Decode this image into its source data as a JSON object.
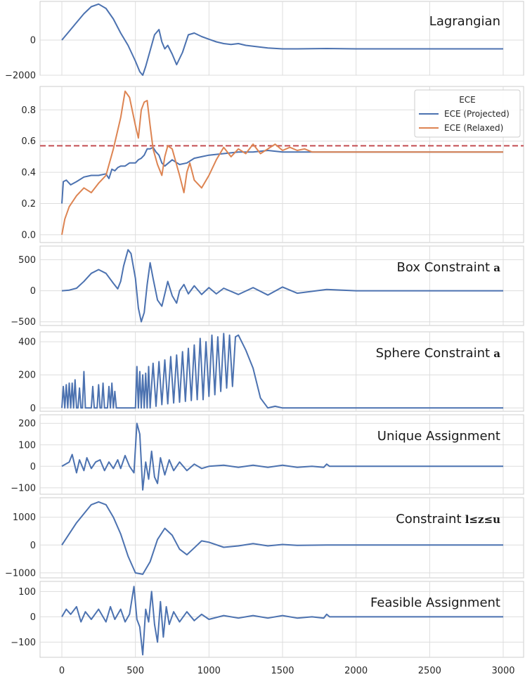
{
  "chart_data": [
    {
      "type": "line",
      "title": "Lagrangian",
      "x_range": [
        0,
        3000
      ],
      "ylim": [
        -2000,
        2200
      ],
      "y_ticks": [
        {
          "v": 0,
          "label": "0"
        },
        {
          "v": -2000,
          "label": "−2000"
        }
      ],
      "series": [
        {
          "color": "#4c72b0",
          "x": [
            0,
            50,
            100,
            150,
            200,
            250,
            300,
            350,
            400,
            450,
            500,
            530,
            550,
            570,
            600,
            630,
            660,
            680,
            700,
            720,
            750,
            780,
            820,
            860,
            900,
            950,
            1000,
            1050,
            1100,
            1150,
            1200,
            1250,
            1300,
            1400,
            1500,
            1600,
            1800,
            2000,
            2500,
            3000
          ],
          "y": [
            0,
            500,
            1000,
            1500,
            1900,
            2050,
            1800,
            1200,
            400,
            -300,
            -1200,
            -1800,
            -2000,
            -1500,
            -600,
            300,
            600,
            -100,
            -500,
            -300,
            -800,
            -1400,
            -700,
            300,
            400,
            200,
            50,
            -100,
            -200,
            -250,
            -200,
            -300,
            -350,
            -450,
            -500,
            -500,
            -480,
            -500,
            -500,
            -500
          ]
        }
      ]
    },
    {
      "type": "line",
      "title": "",
      "x_range": [
        0,
        3000
      ],
      "ylim": [
        -0.05,
        0.95
      ],
      "y_ticks": [
        {
          "v": 0.8,
          "label": "0.8"
        },
        {
          "v": 0.6,
          "label": "0.6"
        },
        {
          "v": 0.4,
          "label": "0.4"
        },
        {
          "v": 0.2,
          "label": "0.2"
        },
        {
          "v": 0.0,
          "label": "0.0"
        }
      ],
      "legend": {
        "title": "ECE",
        "placement": "top-right"
      },
      "hline": {
        "y": 0.57,
        "color": "#c44e52",
        "style": "dashed"
      },
      "series": [
        {
          "name": "ECE (Projected)",
          "color": "#4c72b0",
          "x": [
            0,
            10,
            30,
            60,
            100,
            150,
            200,
            250,
            300,
            320,
            340,
            360,
            380,
            400,
            430,
            460,
            500,
            520,
            540,
            560,
            580,
            600,
            620,
            640,
            660,
            680,
            700,
            750,
            800,
            850,
            900,
            950,
            1000,
            1100,
            1200,
            1300,
            1400,
            1500,
            1600,
            1800,
            2000,
            2500,
            3000
          ],
          "y": [
            0.2,
            0.34,
            0.35,
            0.32,
            0.34,
            0.37,
            0.38,
            0.38,
            0.39,
            0.36,
            0.42,
            0.41,
            0.43,
            0.44,
            0.44,
            0.46,
            0.46,
            0.48,
            0.49,
            0.51,
            0.55,
            0.55,
            0.56,
            0.53,
            0.51,
            0.46,
            0.44,
            0.48,
            0.45,
            0.46,
            0.49,
            0.5,
            0.51,
            0.52,
            0.53,
            0.53,
            0.54,
            0.53,
            0.53,
            0.53,
            0.53,
            0.53,
            0.53
          ]
        },
        {
          "name": "ECE (Relaxed)",
          "color": "#dd8452",
          "x": [
            0,
            20,
            50,
            100,
            150,
            200,
            250,
            300,
            350,
            400,
            430,
            460,
            500,
            520,
            540,
            560,
            580,
            600,
            620,
            650,
            680,
            700,
            720,
            750,
            800,
            830,
            850,
            870,
            900,
            950,
            1000,
            1050,
            1100,
            1150,
            1200,
            1250,
            1300,
            1350,
            1400,
            1450,
            1500,
            1550,
            1600,
            1650,
            1700,
            1800,
            2000,
            2500,
            3000
          ],
          "y": [
            0,
            0.1,
            0.18,
            0.25,
            0.3,
            0.27,
            0.33,
            0.38,
            0.55,
            0.75,
            0.92,
            0.88,
            0.7,
            0.62,
            0.8,
            0.85,
            0.86,
            0.7,
            0.55,
            0.45,
            0.38,
            0.5,
            0.57,
            0.55,
            0.38,
            0.27,
            0.4,
            0.46,
            0.35,
            0.3,
            0.38,
            0.48,
            0.56,
            0.5,
            0.55,
            0.52,
            0.58,
            0.52,
            0.55,
            0.58,
            0.54,
            0.56,
            0.54,
            0.55,
            0.53,
            0.53,
            0.53,
            0.53,
            0.53
          ]
        }
      ]
    },
    {
      "type": "line",
      "title": "Box Constraint",
      "title_symbol": "a",
      "x_range": [
        0,
        3000
      ],
      "ylim": [
        -560,
        720
      ],
      "y_ticks": [
        {
          "v": 500,
          "label": "500"
        },
        {
          "v": 0,
          "label": "0"
        },
        {
          "v": -500,
          "label": "−500"
        }
      ],
      "series": [
        {
          "color": "#4c72b0",
          "x": [
            0,
            50,
            100,
            150,
            200,
            250,
            300,
            350,
            380,
            400,
            420,
            450,
            470,
            500,
            520,
            540,
            560,
            580,
            600,
            620,
            650,
            680,
            700,
            720,
            750,
            780,
            800,
            830,
            860,
            900,
            950,
            1000,
            1050,
            1100,
            1200,
            1300,
            1400,
            1500,
            1600,
            1800,
            2000,
            2500,
            3000
          ],
          "y": [
            0,
            10,
            40,
            150,
            280,
            340,
            280,
            120,
            30,
            150,
            400,
            660,
            600,
            200,
            -280,
            -500,
            -350,
            100,
            450,
            200,
            -150,
            -250,
            -50,
            150,
            -80,
            -200,
            0,
            100,
            -50,
            80,
            -60,
            50,
            -50,
            40,
            -60,
            50,
            -70,
            60,
            -40,
            20,
            0,
            0,
            0
          ]
        }
      ]
    },
    {
      "type": "line",
      "title": "Sphere Constraint",
      "title_symbol": "a",
      "x_range": [
        0,
        3000
      ],
      "ylim": [
        -20,
        460
      ],
      "y_ticks": [
        {
          "v": 400,
          "label": "400"
        },
        {
          "v": 200,
          "label": "200"
        },
        {
          "v": 0,
          "label": "0"
        }
      ],
      "series": [
        {
          "color": "#4c72b0",
          "x": [
            0,
            10,
            20,
            30,
            40,
            50,
            60,
            70,
            80,
            90,
            100,
            110,
            120,
            130,
            140,
            150,
            160,
            170,
            180,
            190,
            200,
            210,
            220,
            230,
            240,
            250,
            260,
            270,
            280,
            290,
            300,
            310,
            320,
            330,
            340,
            350,
            360,
            370,
            380,
            500,
            510,
            520,
            530,
            540,
            550,
            560,
            570,
            580,
            590,
            600,
            620,
            640,
            660,
            680,
            700,
            720,
            740,
            760,
            780,
            800,
            820,
            840,
            860,
            880,
            900,
            920,
            940,
            960,
            980,
            1000,
            1020,
            1040,
            1060,
            1080,
            1100,
            1120,
            1140,
            1160,
            1180,
            1200,
            1250,
            1300,
            1350,
            1400,
            1450,
            1500,
            1600,
            1800,
            2000,
            2500,
            3000
          ],
          "y": [
            0,
            130,
            0,
            140,
            0,
            150,
            0,
            150,
            0,
            170,
            0,
            0,
            120,
            0,
            0,
            220,
            0,
            0,
            0,
            0,
            0,
            130,
            0,
            0,
            0,
            140,
            0,
            0,
            150,
            0,
            0,
            0,
            130,
            0,
            150,
            0,
            100,
            0,
            0,
            0,
            250,
            0,
            220,
            0,
            200,
            0,
            210,
            0,
            250,
            0,
            270,
            10,
            280,
            20,
            290,
            25,
            310,
            30,
            320,
            35,
            340,
            40,
            360,
            45,
            380,
            50,
            420,
            50,
            400,
            70,
            440,
            80,
            430,
            100,
            450,
            120,
            440,
            130,
            430,
            440,
            350,
            240,
            60,
            0,
            10,
            0,
            0,
            0,
            0,
            0,
            0
          ]
        }
      ]
    },
    {
      "type": "line",
      "title": "Unique Assignment",
      "x_range": [
        0,
        3000
      ],
      "ylim": [
        -130,
        240
      ],
      "y_ticks": [
        {
          "v": 200,
          "label": "200"
        },
        {
          "v": 100,
          "label": "100"
        },
        {
          "v": 0,
          "label": "0"
        },
        {
          "v": -100,
          "label": "−100"
        }
      ],
      "series": [
        {
          "color": "#4c72b0",
          "x": [
            0,
            50,
            70,
            100,
            120,
            150,
            170,
            200,
            230,
            260,
            290,
            320,
            350,
            380,
            400,
            430,
            460,
            490,
            510,
            530,
            550,
            570,
            590,
            610,
            630,
            650,
            670,
            700,
            730,
            760,
            800,
            850,
            900,
            950,
            1000,
            1100,
            1200,
            1300,
            1400,
            1500,
            1600,
            1700,
            1780,
            1800,
            1820,
            2000,
            2500,
            3000
          ],
          "y": [
            0,
            20,
            55,
            -30,
            30,
            -20,
            40,
            -10,
            20,
            30,
            -20,
            20,
            -10,
            30,
            -10,
            50,
            0,
            -30,
            200,
            150,
            -110,
            20,
            -60,
            70,
            -50,
            -80,
            40,
            -40,
            30,
            -20,
            20,
            -20,
            10,
            -10,
            0,
            5,
            -5,
            5,
            -5,
            5,
            -5,
            0,
            -5,
            10,
            0,
            0,
            0,
            0
          ]
        }
      ]
    },
    {
      "type": "line",
      "title": "Constraint",
      "title_symbol": "l≤z≤u",
      "x_range": [
        0,
        3000
      ],
      "ylim": [
        -1180,
        1700
      ],
      "y_ticks": [
        {
          "v": 1000,
          "label": "1000"
        },
        {
          "v": 0,
          "label": "0"
        },
        {
          "v": -1000,
          "label": "−1000"
        }
      ],
      "series": [
        {
          "color": "#4c72b0",
          "x": [
            0,
            100,
            200,
            250,
            300,
            350,
            400,
            450,
            500,
            550,
            600,
            650,
            700,
            750,
            800,
            850,
            900,
            950,
            1000,
            1100,
            1200,
            1300,
            1400,
            1500,
            1600,
            1800,
            2000,
            2500,
            3000
          ],
          "y": [
            0,
            800,
            1450,
            1550,
            1450,
            1000,
            400,
            -400,
            -1000,
            -1050,
            -600,
            200,
            600,
            350,
            -150,
            -350,
            -100,
            150,
            100,
            -80,
            -30,
            50,
            -30,
            20,
            -10,
            0,
            0,
            0,
            0
          ]
        }
      ]
    },
    {
      "type": "line",
      "title": "Feasible Assignment",
      "x_range": [
        0,
        3000
      ],
      "ylim": [
        -160,
        140
      ],
      "y_ticks": [
        {
          "v": 100,
          "label": "100"
        },
        {
          "v": 0,
          "label": "0"
        },
        {
          "v": -100,
          "label": "−100"
        }
      ],
      "series": [
        {
          "color": "#4c72b0",
          "x": [
            0,
            30,
            60,
            100,
            130,
            160,
            200,
            250,
            300,
            330,
            360,
            400,
            430,
            460,
            490,
            510,
            530,
            550,
            570,
            590,
            610,
            630,
            650,
            670,
            690,
            710,
            730,
            760,
            800,
            850,
            900,
            950,
            1000,
            1100,
            1200,
            1300,
            1400,
            1500,
            1600,
            1700,
            1780,
            1800,
            1820,
            2000,
            2500,
            3000
          ],
          "y": [
            0,
            30,
            10,
            40,
            -20,
            20,
            -10,
            30,
            -20,
            40,
            -10,
            30,
            -20,
            10,
            120,
            -10,
            -40,
            -150,
            30,
            -20,
            100,
            -30,
            -100,
            60,
            -80,
            40,
            -30,
            20,
            -20,
            20,
            -15,
            10,
            -10,
            5,
            -5,
            5,
            -5,
            5,
            -5,
            0,
            -5,
            10,
            0,
            0,
            0,
            0
          ]
        }
      ]
    }
  ],
  "x_axis": {
    "ticks": [
      {
        "v": 0,
        "label": "0"
      },
      {
        "v": 500,
        "label": "500"
      },
      {
        "v": 1000,
        "label": "1000"
      },
      {
        "v": 1500,
        "label": "1500"
      },
      {
        "v": 2000,
        "label": "2000"
      },
      {
        "v": 2500,
        "label": "2500"
      },
      {
        "v": 3000,
        "label": "3000"
      }
    ]
  }
}
